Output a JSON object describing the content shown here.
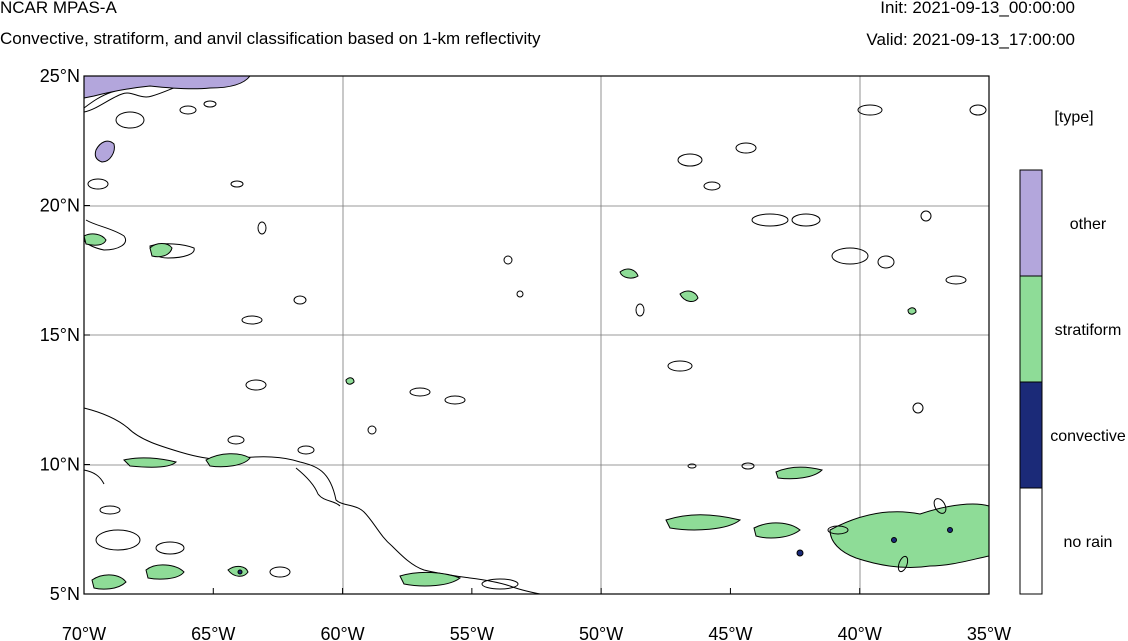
{
  "header": {
    "title": "NCAR MPAS-A",
    "subtitle": "Convective, stratiform, and anvil classification based on 1-km reflectivity",
    "init": "Init: 2021-09-13_00:00:00",
    "valid": "Valid: 2021-09-13_17:00:00"
  },
  "map": {
    "lon_range": [
      -70,
      -35
    ],
    "lat_range": [
      5,
      25
    ],
    "x_ticks": [
      "70°W",
      "65°W",
      "60°W",
      "55°W",
      "50°W",
      "45°W",
      "40°W",
      "35°W"
    ],
    "y_ticks": [
      "25°N",
      "20°N",
      "15°N",
      "10°N",
      "5°N"
    ],
    "grid": true,
    "gridlines_lon": [
      -60,
      -50,
      -40
    ],
    "gridlines_lat": [
      20,
      15,
      10
    ]
  },
  "legend": {
    "title": "[type]",
    "entries": [
      {
        "label": "other",
        "color": "#b3a6dc"
      },
      {
        "label": "stratiform",
        "color": "#8edc97"
      },
      {
        "label": "convective",
        "color": "#1b2a78"
      },
      {
        "label": "no rain",
        "color": "#ffffff"
      }
    ]
  }
}
